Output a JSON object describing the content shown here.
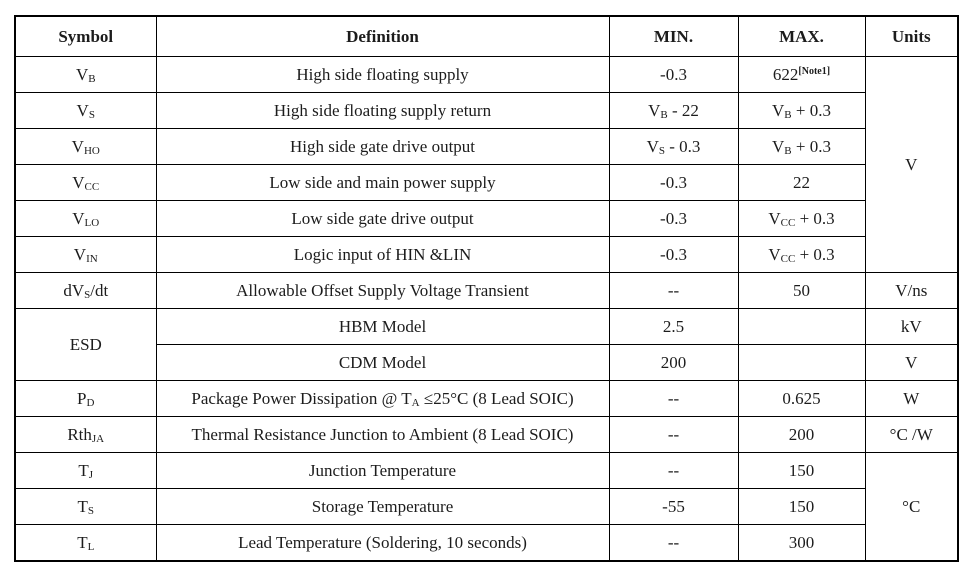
{
  "table": {
    "headers": [
      "Symbol",
      "Definition",
      "MIN.",
      "MAX.",
      "Units"
    ],
    "rows": [
      {
        "symbol": {
          "pre": "V",
          "sub": "B"
        },
        "definition": "High side floating supply",
        "min": "-0.3",
        "max": {
          "pre": "622",
          "sup": "[Note1]"
        },
        "units": "V"
      },
      {
        "symbol": {
          "pre": "V",
          "sub": "S"
        },
        "definition": "High side floating supply return",
        "min": {
          "pre": "V",
          "sub": "B",
          "post": " - 22"
        },
        "max": {
          "pre": "V",
          "sub": "B",
          "post": " + 0.3"
        }
      },
      {
        "symbol": {
          "pre": "V",
          "sub": "HO"
        },
        "definition": "High side gate drive output",
        "min": {
          "pre": "V",
          "sub": "S",
          "post": " - 0.3"
        },
        "max": {
          "pre": "V",
          "sub": "B",
          "post": " + 0.3"
        }
      },
      {
        "symbol": {
          "pre": "V",
          "sub": "CC"
        },
        "definition": "Low side and main power supply",
        "min": "-0.3",
        "max": "22"
      },
      {
        "symbol": {
          "pre": "V",
          "sub": "LO"
        },
        "definition": "Low side gate drive output",
        "min": "-0.3",
        "max": {
          "pre": "V",
          "sub": "CC",
          "post": " + 0.3"
        }
      },
      {
        "symbol": {
          "pre": "V",
          "sub": "IN"
        },
        "definition": "Logic input of HIN &LIN",
        "min": "-0.3",
        "max": {
          "pre": "V",
          "sub": "CC",
          "post": " + 0.3"
        }
      },
      {
        "symbol": {
          "pre": "dV",
          "sub": "S",
          "post": "/dt"
        },
        "definition": "Allowable Offset Supply Voltage Transient",
        "min": "--",
        "max": "50",
        "units": "V/ns"
      },
      {
        "symbol": {
          "pre": "ESD"
        },
        "definition": "HBM Model",
        "min": "2.5",
        "max": "",
        "units": "kV"
      },
      {
        "definition": "CDM Model",
        "min": "200",
        "max": "",
        "units": "V"
      },
      {
        "symbol": {
          "pre": "P",
          "sub": "D"
        },
        "definition": {
          "pre": "Package Power Dissipation @ T",
          "sub": "A",
          "post": " ≤25°C (8 Lead SOIC)"
        },
        "min": "--",
        "max": "0.625",
        "units": "W"
      },
      {
        "symbol": {
          "pre": "Rth",
          "sub": "JA"
        },
        "definition": "Thermal Resistance Junction to Ambient (8 Lead SOIC)",
        "min": "--",
        "max": "200",
        "units": "°C /W"
      },
      {
        "symbol": {
          "pre": "T",
          "sub": "J"
        },
        "definition": "Junction Temperature",
        "min": "--",
        "max": "150",
        "units": "°C"
      },
      {
        "symbol": {
          "pre": "T",
          "sub": "S"
        },
        "definition": "Storage Temperature",
        "min": "-55",
        "max": "150"
      },
      {
        "symbol": {
          "pre": "T",
          "sub": "L"
        },
        "definition": "Lead Temperature (Soldering, 10 seconds)",
        "min": "--",
        "max": "300"
      }
    ]
  }
}
